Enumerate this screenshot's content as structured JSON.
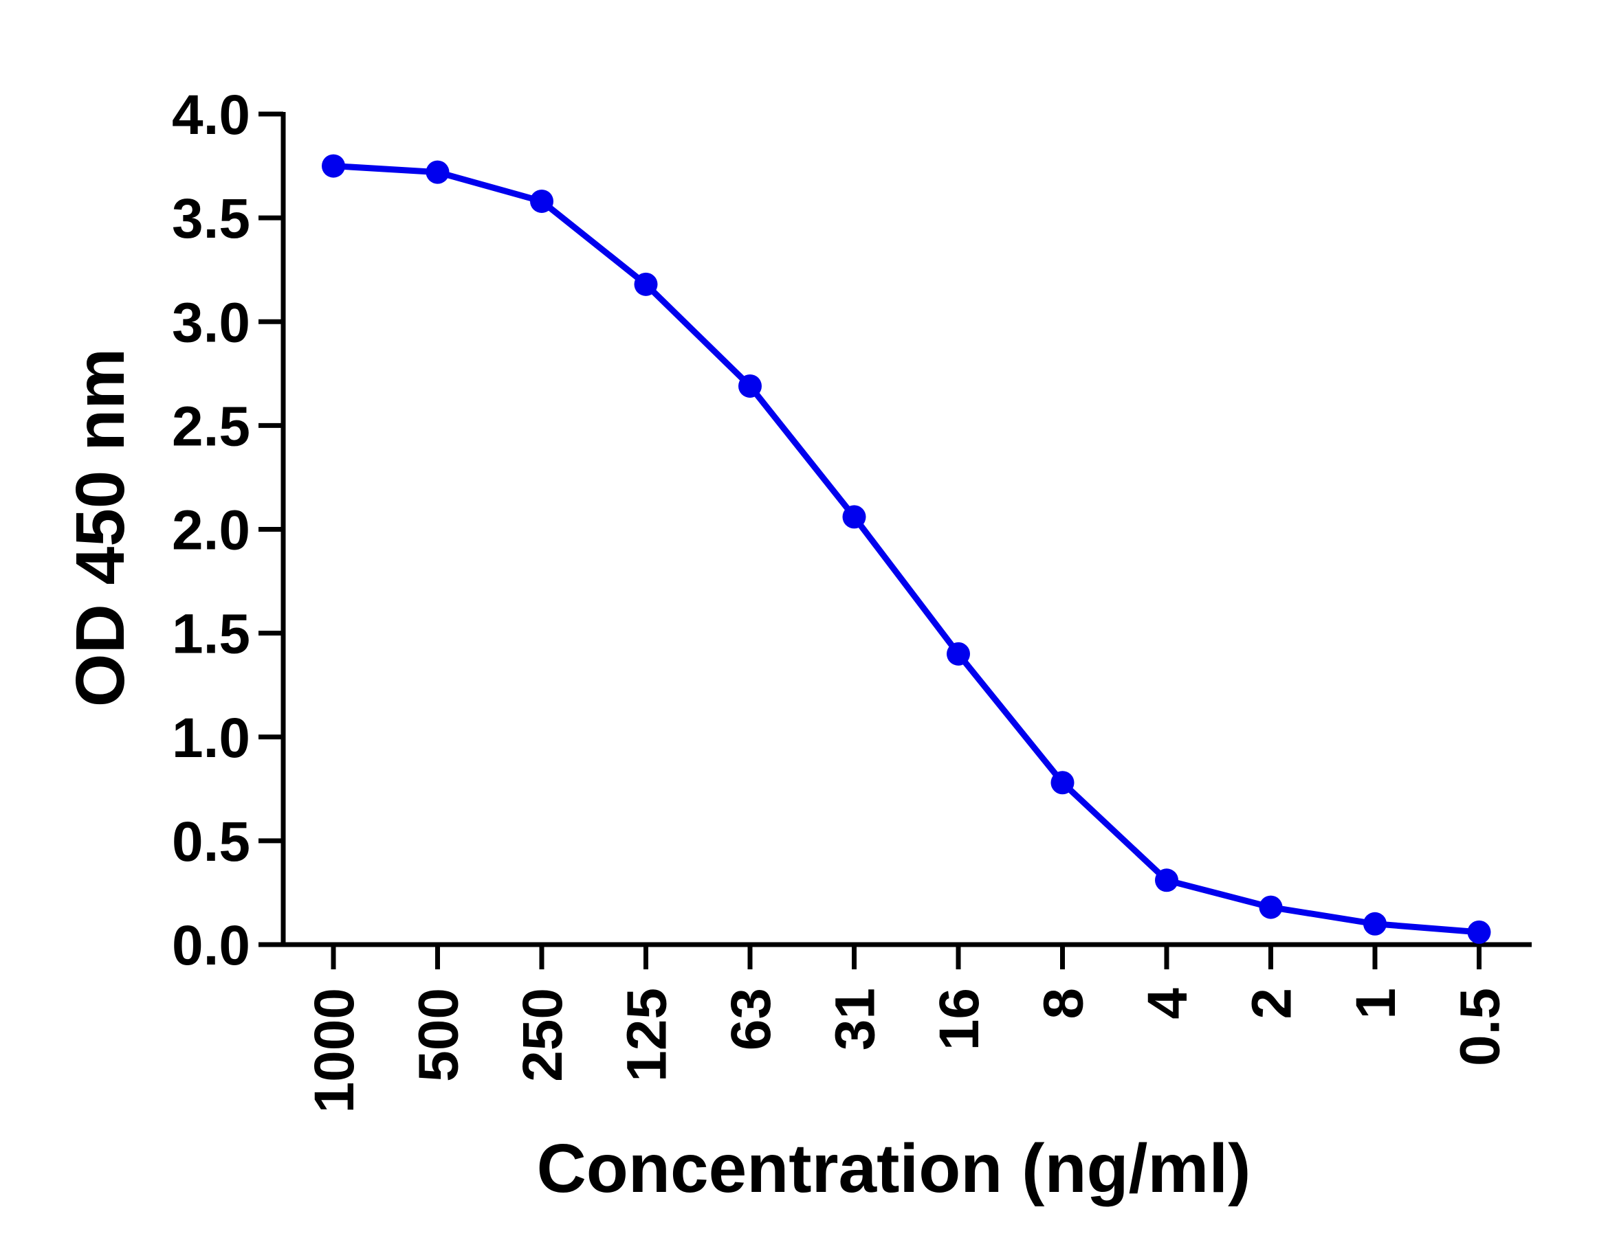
{
  "chart_data": {
    "type": "line",
    "title": "",
    "xlabel": "Concentration (ng/ml)",
    "ylabel": "OD 450 nm",
    "categories": [
      "1000",
      "500",
      "250",
      "125",
      "63",
      "31",
      "16",
      "8",
      "4",
      "2",
      "1",
      "0.5"
    ],
    "series": [
      {
        "values": [
          3.75,
          3.72,
          3.58,
          3.18,
          2.69,
          2.06,
          1.4,
          0.78,
          0.31,
          0.18,
          0.1,
          0.06
        ],
        "color": "#0000ee"
      }
    ],
    "ylim": [
      0,
      4
    ],
    "yticks": [
      "0.0",
      "0.5",
      "1.0",
      "1.5",
      "2.0",
      "2.5",
      "3.0",
      "3.5",
      "4.0"
    ],
    "grid": false,
    "legend": "none"
  }
}
